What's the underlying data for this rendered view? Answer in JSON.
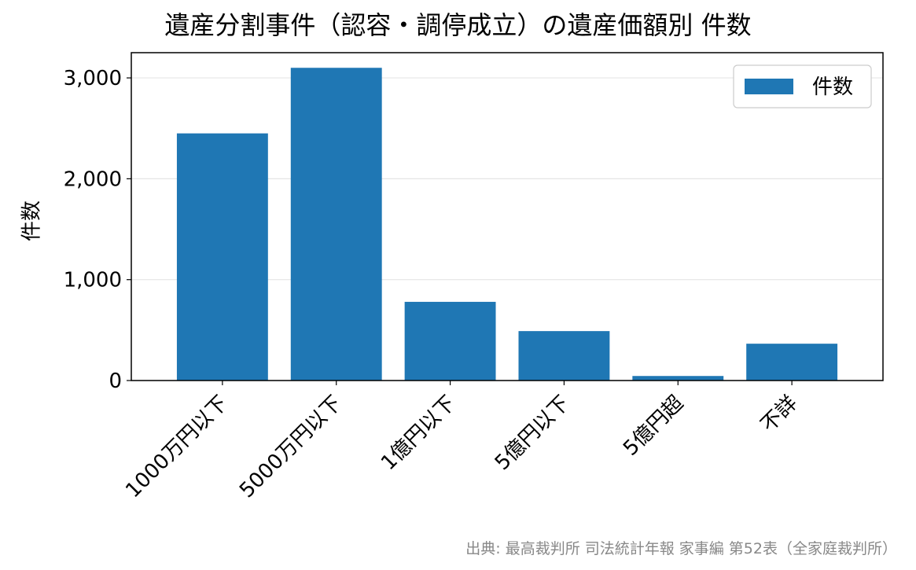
{
  "chart_data": {
    "type": "bar",
    "title": "遺産分割事件（認容・調停成立）の遺産価額別 件数",
    "xlabel": "",
    "ylabel": "件数",
    "categories": [
      "1000万円以下",
      "5000万円以下",
      "1億円以下",
      "5億円以下",
      "5億円超",
      "不詳"
    ],
    "series": [
      {
        "name": "件数",
        "values": [
          2450,
          3100,
          780,
          490,
          45,
          365
        ],
        "color": "#1f77b4"
      }
    ],
    "ylim": [
      0,
      3250
    ],
    "yticks": [
      0,
      1000,
      2000,
      3000
    ],
    "ytick_labels": [
      "0",
      "1,000",
      "2,000",
      "3,000"
    ],
    "grid": "horizontal",
    "legend": "top-right"
  },
  "source_note": "出典: 最高裁判所 司法統計年報 家事編 第52表（全家庭裁判所）"
}
